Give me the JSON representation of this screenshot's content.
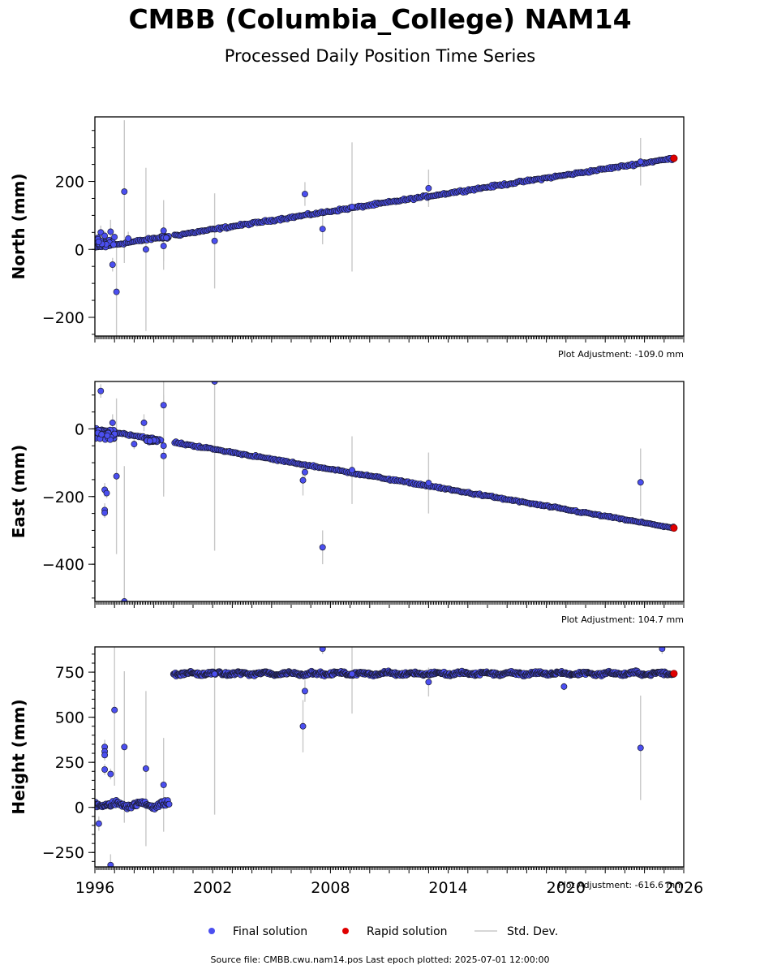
{
  "title": "CMBB (Columbia_College) NAM14",
  "subtitle": "Processed Daily Position Time Series",
  "footer": "Source file: CMBB.cwu.nam14.pos  Last epoch plotted: 2025-07-01 12:00:00",
  "colors": {
    "final": "#4b4ff0",
    "rapid": "#e00000",
    "stddev": "#c8c8c8"
  },
  "legend": [
    "Final solution",
    "Rapid solution",
    "Std. Dev."
  ],
  "chart_data": [
    {
      "type": "scatter",
      "ylabel": "North (mm)",
      "adjustment": "Plot Adjustment: -109.0 mm",
      "xlim": [
        1996,
        2026
      ],
      "ylim": [
        -255,
        390
      ],
      "yticks": [
        -200,
        0,
        200
      ],
      "xticks": [
        1996,
        2002,
        2008,
        2014,
        2020,
        2026
      ],
      "trend": {
        "start": [
          1996.0,
          5
        ],
        "end": [
          2025.5,
          268
        ],
        "noise": 5,
        "year_step": 0.07
      },
      "gaps": [
        [
          1999.4,
          2000.0
        ]
      ],
      "clusters": [
        {
          "x0": 1996.0,
          "x1": 1997.0,
          "y": 22,
          "spread": 18
        },
        {
          "x0": 1999.3,
          "x1": 1999.8,
          "y": 35,
          "spread": 6
        }
      ],
      "outliers": [
        {
          "x": 1996.3,
          "y": 50,
          "err": 20
        },
        {
          "x": 1996.5,
          "y": 40,
          "err": 15
        },
        {
          "x": 1996.8,
          "y": 52,
          "err": 35
        },
        {
          "x": 1996.9,
          "y": -45,
          "err": 20
        },
        {
          "x": 1997.1,
          "y": -125,
          "err": 140
        },
        {
          "x": 1997.5,
          "y": 170,
          "err": 210
        },
        {
          "x": 1997.7,
          "y": 32,
          "err": 20
        },
        {
          "x": 1998.6,
          "y": 0,
          "err": 240
        },
        {
          "x": 1999.5,
          "y": 55,
          "err": 90
        },
        {
          "x": 1999.5,
          "y": 10,
          "err": 70
        },
        {
          "x": 2002.1,
          "y": 25,
          "err": 140
        },
        {
          "x": 2006.7,
          "y": 163,
          "err": 35
        },
        {
          "x": 2007.6,
          "y": 60,
          "err": 45
        },
        {
          "x": 2009.1,
          "y": 125,
          "err": 190
        },
        {
          "x": 2013.0,
          "y": 180,
          "err": 55
        },
        {
          "x": 2023.8,
          "y": 258,
          "err": 70
        }
      ],
      "rapid": {
        "x": 2025.5,
        "y": 268
      }
    },
    {
      "type": "scatter",
      "ylabel": "East (mm)",
      "adjustment": "Plot Adjustment: 104.7 mm",
      "xlim": [
        1996,
        2026
      ],
      "ylim": [
        -510,
        140
      ],
      "yticks": [
        -400,
        -200,
        0
      ],
      "xticks": [
        1996,
        2002,
        2008,
        2014,
        2020,
        2026
      ],
      "trend": {
        "start": [
          1996.0,
          0
        ],
        "end": [
          2025.5,
          -293
        ],
        "noise": 4,
        "year_step": 0.07
      },
      "gaps": [
        [
          1999.4,
          2000.0
        ]
      ],
      "clusters": [
        {
          "x0": 1996.0,
          "x1": 1997.0,
          "y": -20,
          "spread": 22
        },
        {
          "x0": 1998.6,
          "x1": 1999.2,
          "y": -35,
          "spread": 6
        }
      ],
      "outliers": [
        {
          "x": 1996.3,
          "y": 112,
          "err": 20
        },
        {
          "x": 1996.5,
          "y": -180,
          "err": 20
        },
        {
          "x": 1996.6,
          "y": -190,
          "err": 15
        },
        {
          "x": 1996.5,
          "y": -240,
          "err": 20
        },
        {
          "x": 1996.5,
          "y": -248,
          "err": 15
        },
        {
          "x": 1996.9,
          "y": 18,
          "err": 25
        },
        {
          "x": 1997.1,
          "y": -140,
          "err": 230
        },
        {
          "x": 1997.5,
          "y": -510,
          "err": 400
        },
        {
          "x": 1998.0,
          "y": -45,
          "err": 15
        },
        {
          "x": 1998.5,
          "y": 18,
          "err": 25
        },
        {
          "x": 1999.5,
          "y": 70,
          "err": 100
        },
        {
          "x": 1999.5,
          "y": -50,
          "err": 150
        },
        {
          "x": 1999.5,
          "y": -80,
          "err": 110
        },
        {
          "x": 2002.1,
          "y": 140,
          "err": 500
        },
        {
          "x": 2006.6,
          "y": -152,
          "err": 45
        },
        {
          "x": 2006.7,
          "y": -128,
          "err": 30
        },
        {
          "x": 2007.6,
          "y": -350,
          "err": 50
        },
        {
          "x": 2009.1,
          "y": -122,
          "err": 100
        },
        {
          "x": 2013.0,
          "y": -160,
          "err": 90
        },
        {
          "x": 2023.8,
          "y": -158,
          "err": 100
        }
      ],
      "rapid": {
        "x": 2025.5,
        "y": -293
      }
    },
    {
      "type": "scatter",
      "ylabel": "Height (mm)",
      "adjustment": "Plot Adjustment: -616.6 mm",
      "xlim": [
        1996,
        2026
      ],
      "ylim": [
        -330,
        890
      ],
      "yticks": [
        -250,
        0,
        250,
        500,
        750
      ],
      "xticks": [
        1996,
        2002,
        2008,
        2014,
        2020,
        2026
      ],
      "segments": [
        {
          "x0": 1996.0,
          "x1": 1999.8,
          "y": 15,
          "noise": 22,
          "year_step": 0.035
        },
        {
          "x0": 2000.0,
          "x1": 2025.5,
          "y": 742,
          "noise": 14,
          "year_step": 0.035
        }
      ],
      "outliers": [
        {
          "x": 1996.2,
          "y": -90,
          "err": 40
        },
        {
          "x": 1996.5,
          "y": 335,
          "err": 40
        },
        {
          "x": 1996.5,
          "y": 310,
          "err": 30
        },
        {
          "x": 1996.5,
          "y": 290,
          "err": 30
        },
        {
          "x": 1996.5,
          "y": 210,
          "err": 30
        },
        {
          "x": 1996.8,
          "y": 185,
          "err": 30
        },
        {
          "x": 1996.8,
          "y": -320,
          "err": 60
        },
        {
          "x": 1997.0,
          "y": 540,
          "err": 420
        },
        {
          "x": 1997.5,
          "y": 335,
          "err": 420
        },
        {
          "x": 1998.6,
          "y": 215,
          "err": 430
        },
        {
          "x": 1999.5,
          "y": 125,
          "err": 260
        },
        {
          "x": 2002.1,
          "y": 740,
          "err": 780
        },
        {
          "x": 2006.6,
          "y": 450,
          "err": 145
        },
        {
          "x": 2006.7,
          "y": 645,
          "err": 60
        },
        {
          "x": 2007.6,
          "y": 880,
          "err": 30
        },
        {
          "x": 2009.1,
          "y": 740,
          "err": 220
        },
        {
          "x": 2013.0,
          "y": 695,
          "err": 80
        },
        {
          "x": 2019.9,
          "y": 670,
          "err": 20
        },
        {
          "x": 2023.8,
          "y": 330,
          "err": 290
        },
        {
          "x": 2024.9,
          "y": 880,
          "err": 30
        }
      ],
      "rapid": {
        "x": 2025.5,
        "y": 742
      }
    }
  ]
}
